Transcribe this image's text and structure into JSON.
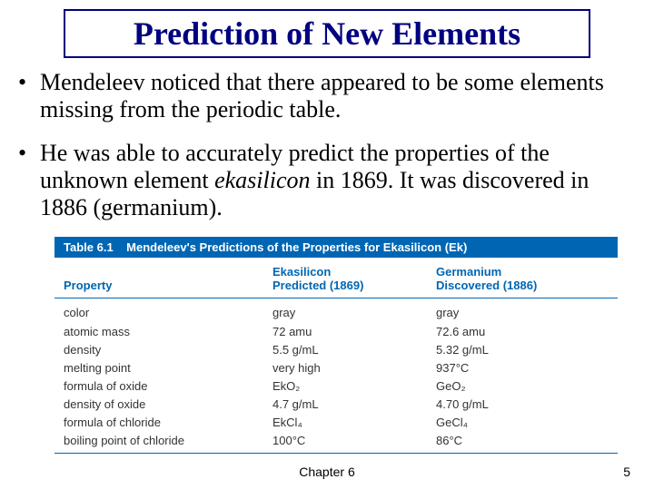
{
  "title": "Prediction of New Elements",
  "bullets": [
    {
      "text": "Mendeleev noticed that there appeared to be some elements missing from the periodic table."
    },
    {
      "text_pre": "He was able to accurately predict the properties of the unknown element ",
      "italic": "ekasilicon",
      "text_post": " in 1869.  It was discovered in 1886 (germanium)."
    }
  ],
  "table": {
    "title_label": "Table 6.1",
    "title_text": "Mendeleev's Predictions of the Properties for Ekasilicon (Ek)",
    "headers": {
      "property": "Property",
      "ek_name": "Ekasilicon",
      "ek_sub": "Predicted (1869)",
      "ge_name": "Germanium",
      "ge_sub": "Discovered (1886)"
    },
    "rows": [
      {
        "property": "color",
        "ek": "gray",
        "ge": "gray"
      },
      {
        "property": "atomic mass",
        "ek": "72 amu",
        "ge": "72.6 amu"
      },
      {
        "property": "density",
        "ek": "5.5 g/mL",
        "ge": "5.32 g/mL"
      },
      {
        "property": "melting point",
        "ek": "very high",
        "ge": "937°C"
      },
      {
        "property": "formula of oxide",
        "ek": "EkO₂",
        "ge": "GeO₂"
      },
      {
        "property": "density of oxide",
        "ek": "4.7 g/mL",
        "ge": "4.70 g/mL"
      },
      {
        "property": "formula of chloride",
        "ek": "EkCl₄",
        "ge": "GeCl₄"
      },
      {
        "property": "boiling point of chloride",
        "ek": "100°C",
        "ge": "86°C"
      }
    ]
  },
  "footer": {
    "chapter": "Chapter 6",
    "page": "5"
  },
  "colors": {
    "title_blue": "#000080",
    "table_blue": "#0066b3",
    "background": "#ffffff"
  }
}
